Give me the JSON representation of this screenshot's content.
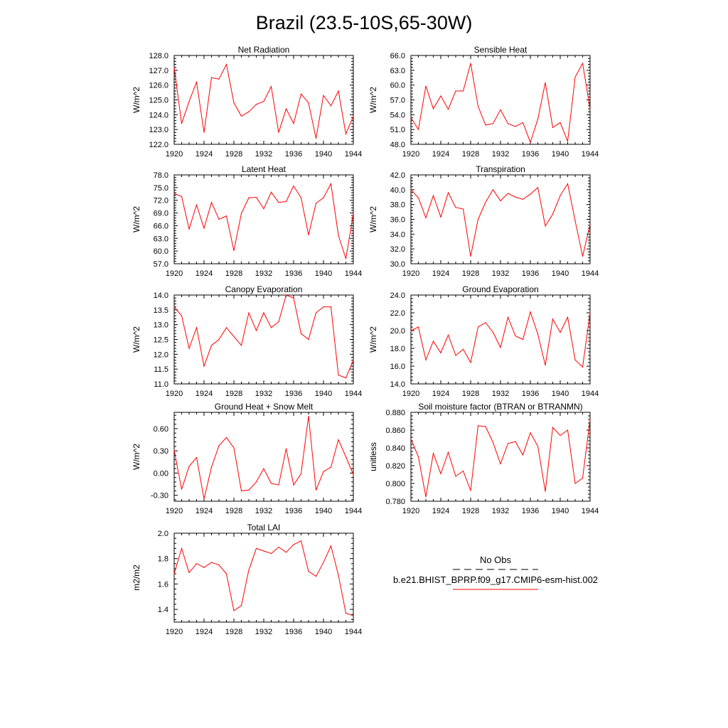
{
  "title": "Brazil (23.5-10S,65-30W)",
  "colors": {
    "model_line": "#ff0000",
    "obs_line": "#000000",
    "axes": "#000000",
    "background": "#ffffff"
  },
  "legend": {
    "obs_label": "No Obs",
    "model_label": "b.e21.BHIST_BPRP.f09_g17.CMIP6-esm-hist.002",
    "obs_line_style": "dashed",
    "model_line_style": "solid"
  },
  "chart_data": [
    {
      "type": "line",
      "title": "Net Radiation",
      "ylabel": "W/m^2",
      "x": [
        1920,
        1921,
        1922,
        1923,
        1924,
        1925,
        1926,
        1927,
        1928,
        1929,
        1930,
        1931,
        1932,
        1933,
        1934,
        1935,
        1936,
        1937,
        1938,
        1939,
        1940,
        1941,
        1942,
        1943,
        1944
      ],
      "xlim": [
        1920,
        1944
      ],
      "xticks": [
        "1920",
        "1924",
        "1928",
        "1932",
        "1936",
        "1940",
        "1944"
      ],
      "ylim": [
        122.0,
        128.0
      ],
      "yticks": [
        "122.0",
        "123.0",
        "124.0",
        "125.0",
        "126.0",
        "127.0",
        "128.0"
      ],
      "series": [
        {
          "values": [
            127.2,
            123.4,
            124.9,
            126.2,
            122.8,
            126.5,
            126.4,
            127.4,
            124.8,
            123.9,
            124.2,
            124.7,
            124.9,
            125.9,
            122.8,
            124.4,
            123.4,
            125.4,
            124.8,
            122.4,
            125.3,
            124.6,
            125.6,
            122.7,
            123.9
          ]
        }
      ]
    },
    {
      "type": "line",
      "title": "Sensible Heat",
      "ylabel": "W/m^2",
      "x": [
        1920,
        1921,
        1922,
        1923,
        1924,
        1925,
        1926,
        1927,
        1928,
        1929,
        1930,
        1931,
        1932,
        1933,
        1934,
        1935,
        1936,
        1937,
        1938,
        1939,
        1940,
        1941,
        1942,
        1943,
        1944
      ],
      "xlim": [
        1920,
        1944
      ],
      "xticks": [
        "1920",
        "1924",
        "1928",
        "1932",
        "1936",
        "1940",
        "1944"
      ],
      "ylim": [
        48.0,
        66.0
      ],
      "yticks": [
        "48.0",
        "51.0",
        "54.0",
        "57.0",
        "60.0",
        "63.0",
        "66.0"
      ],
      "series": [
        {
          "values": [
            53.4,
            51.0,
            59.8,
            55.2,
            57.8,
            55.1,
            58.8,
            58.8,
            64.4,
            55.7,
            51.9,
            52.2,
            55.0,
            52.2,
            51.6,
            52.4,
            48.4,
            53.1,
            60.5,
            51.4,
            52.4,
            48.6,
            61.6,
            64.4,
            55.2
          ]
        }
      ]
    },
    {
      "type": "line",
      "title": "Latent Heat",
      "ylabel": "W/m^2",
      "x": [
        1920,
        1921,
        1922,
        1923,
        1924,
        1925,
        1926,
        1927,
        1928,
        1929,
        1930,
        1931,
        1932,
        1933,
        1934,
        1935,
        1936,
        1937,
        1938,
        1939,
        1940,
        1941,
        1942,
        1943,
        1944
      ],
      "xlim": [
        1920,
        1944
      ],
      "xticks": [
        "1920",
        "1924",
        "1928",
        "1932",
        "1936",
        "1940",
        "1944"
      ],
      "ylim": [
        57.0,
        78.0
      ],
      "yticks": [
        "57.0",
        "60.0",
        "63.0",
        "66.0",
        "69.0",
        "72.0",
        "75.0",
        "78.0"
      ],
      "series": [
        {
          "values": [
            73.6,
            72.9,
            65.2,
            70.9,
            65.4,
            71.5,
            67.5,
            68.3,
            60.1,
            68.9,
            72.6,
            72.7,
            70.0,
            73.9,
            71.5,
            71.7,
            75.4,
            72.6,
            63.8,
            71.3,
            72.6,
            75.9,
            63.7,
            58.2,
            68.9
          ]
        }
      ]
    },
    {
      "type": "line",
      "title": "Transpiration",
      "ylabel": "W/m^2",
      "x": [
        1920,
        1921,
        1922,
        1923,
        1924,
        1925,
        1926,
        1927,
        1928,
        1929,
        1930,
        1931,
        1932,
        1933,
        1934,
        1935,
        1936,
        1937,
        1938,
        1939,
        1940,
        1941,
        1942,
        1943,
        1944
      ],
      "xlim": [
        1920,
        1944
      ],
      "xticks": [
        "1920",
        "1924",
        "1928",
        "1932",
        "1936",
        "1940",
        "1944"
      ],
      "ylim": [
        30.0,
        42.0
      ],
      "yticks": [
        "30.0",
        "32.0",
        "34.0",
        "36.0",
        "38.0",
        "40.0",
        "42.0"
      ],
      "series": [
        {
          "values": [
            40.0,
            38.9,
            36.2,
            39.2,
            36.3,
            39.6,
            37.6,
            37.4,
            31.0,
            36.0,
            38.3,
            40.0,
            38.5,
            39.5,
            39.0,
            38.7,
            39.4,
            40.3,
            35.1,
            36.7,
            39.2,
            40.8,
            35.8,
            31.0,
            35.3
          ]
        }
      ]
    },
    {
      "type": "line",
      "title": "Canopy Evaporation",
      "ylabel": "W/m^2",
      "x": [
        1920,
        1921,
        1922,
        1923,
        1924,
        1925,
        1926,
        1927,
        1928,
        1929,
        1930,
        1931,
        1932,
        1933,
        1934,
        1935,
        1936,
        1937,
        1938,
        1939,
        1940,
        1941,
        1942,
        1943,
        1944
      ],
      "xlim": [
        1920,
        1944
      ],
      "xticks": [
        "1920",
        "1924",
        "1928",
        "1932",
        "1936",
        "1940",
        "1944"
      ],
      "ylim": [
        11.0,
        14.0
      ],
      "yticks": [
        "11.0",
        "11.5",
        "12.0",
        "12.5",
        "13.0",
        "13.5",
        "14.0"
      ],
      "series": [
        {
          "values": [
            13.6,
            13.3,
            12.2,
            12.9,
            11.6,
            12.3,
            12.5,
            12.9,
            12.6,
            12.3,
            13.4,
            12.8,
            13.4,
            12.9,
            13.1,
            14.0,
            13.9,
            12.7,
            12.5,
            13.4,
            13.6,
            13.6,
            11.3,
            11.2,
            11.8
          ]
        }
      ]
    },
    {
      "type": "line",
      "title": "Ground Evaporation",
      "ylabel": "W/m^2",
      "x": [
        1920,
        1921,
        1922,
        1923,
        1924,
        1925,
        1926,
        1927,
        1928,
        1929,
        1930,
        1931,
        1932,
        1933,
        1934,
        1935,
        1936,
        1937,
        1938,
        1939,
        1940,
        1941,
        1942,
        1943,
        1944
      ],
      "xlim": [
        1920,
        1944
      ],
      "xticks": [
        "1920",
        "1924",
        "1928",
        "1932",
        "1936",
        "1940",
        "1944"
      ],
      "ylim": [
        14.0,
        24.0
      ],
      "yticks": [
        "14.0",
        "16.0",
        "18.0",
        "20.0",
        "22.0",
        "24.0"
      ],
      "series": [
        {
          "values": [
            20.0,
            20.4,
            16.7,
            18.8,
            17.5,
            19.5,
            17.2,
            17.9,
            16.4,
            20.4,
            20.9,
            19.8,
            18.1,
            21.5,
            19.4,
            19.0,
            22.1,
            19.6,
            16.1,
            21.3,
            19.8,
            21.5,
            16.7,
            15.9,
            22.0
          ]
        }
      ]
    },
    {
      "type": "line",
      "title": "Ground Heat + Snow Melt",
      "ylabel": "W/m^2",
      "x": [
        1920,
        1921,
        1922,
        1923,
        1924,
        1925,
        1926,
        1927,
        1928,
        1929,
        1930,
        1931,
        1932,
        1933,
        1934,
        1935,
        1936,
        1937,
        1938,
        1939,
        1940,
        1941,
        1942,
        1943,
        1944
      ],
      "xlim": [
        1920,
        1944
      ],
      "xticks": [
        "1920",
        "1924",
        "1928",
        "1932",
        "1936",
        "1940",
        "1944"
      ],
      "ylim": [
        -0.38,
        0.82
      ],
      "yticks": [
        "-0.30",
        "0.00",
        "0.30",
        "0.60"
      ],
      "ytick_values": [
        -0.3,
        0.0,
        0.3,
        0.6
      ],
      "series": [
        {
          "values": [
            0.31,
            -0.22,
            0.09,
            0.21,
            -0.35,
            0.08,
            0.37,
            0.48,
            0.34,
            -0.24,
            -0.23,
            -0.12,
            0.06,
            -0.14,
            -0.16,
            0.33,
            -0.16,
            -0.01,
            0.77,
            -0.23,
            0.02,
            0.08,
            0.45,
            0.22,
            -0.02
          ]
        }
      ]
    },
    {
      "type": "line",
      "title": "Soil moisture factor (BTRAN or BTRANMN)",
      "ylabel": "unitless",
      "x": [
        1920,
        1921,
        1922,
        1923,
        1924,
        1925,
        1926,
        1927,
        1928,
        1929,
        1930,
        1931,
        1932,
        1933,
        1934,
        1935,
        1936,
        1937,
        1938,
        1939,
        1940,
        1941,
        1942,
        1943,
        1944
      ],
      "xlim": [
        1920,
        1944
      ],
      "xticks": [
        "1920",
        "1924",
        "1928",
        "1932",
        "1936",
        "1940",
        "1944"
      ],
      "ylim": [
        0.78,
        0.88
      ],
      "yticks": [
        "0.780",
        "0.800",
        "0.820",
        "0.840",
        "0.860",
        "0.880"
      ],
      "series": [
        {
          "values": [
            0.85,
            0.83,
            0.785,
            0.834,
            0.811,
            0.835,
            0.808,
            0.814,
            0.792,
            0.865,
            0.864,
            0.846,
            0.822,
            0.845,
            0.847,
            0.832,
            0.857,
            0.842,
            0.791,
            0.863,
            0.854,
            0.86,
            0.8,
            0.806,
            0.872
          ]
        }
      ]
    },
    {
      "type": "line",
      "title": "Total LAI",
      "ylabel": "m2/m2",
      "x": [
        1920,
        1921,
        1922,
        1923,
        1924,
        1925,
        1926,
        1927,
        1928,
        1929,
        1930,
        1931,
        1932,
        1933,
        1934,
        1935,
        1936,
        1937,
        1938,
        1939,
        1940,
        1941,
        1942,
        1943,
        1944
      ],
      "xlim": [
        1920,
        1944
      ],
      "xticks": [
        "1920",
        "1924",
        "1928",
        "1932",
        "1936",
        "1940",
        "1944"
      ],
      "ylim": [
        1.3,
        2.0
      ],
      "yticks": [
        "1.4",
        "1.6",
        "1.8",
        "2.0"
      ],
      "ytick_values": [
        1.4,
        1.6,
        1.8,
        2.0
      ],
      "series": [
        {
          "values": [
            1.68,
            1.88,
            1.69,
            1.76,
            1.73,
            1.77,
            1.75,
            1.68,
            1.39,
            1.43,
            1.71,
            1.88,
            1.86,
            1.84,
            1.89,
            1.85,
            1.91,
            1.94,
            1.7,
            1.66,
            1.77,
            1.9,
            1.67,
            1.37,
            1.35
          ]
        }
      ]
    }
  ]
}
